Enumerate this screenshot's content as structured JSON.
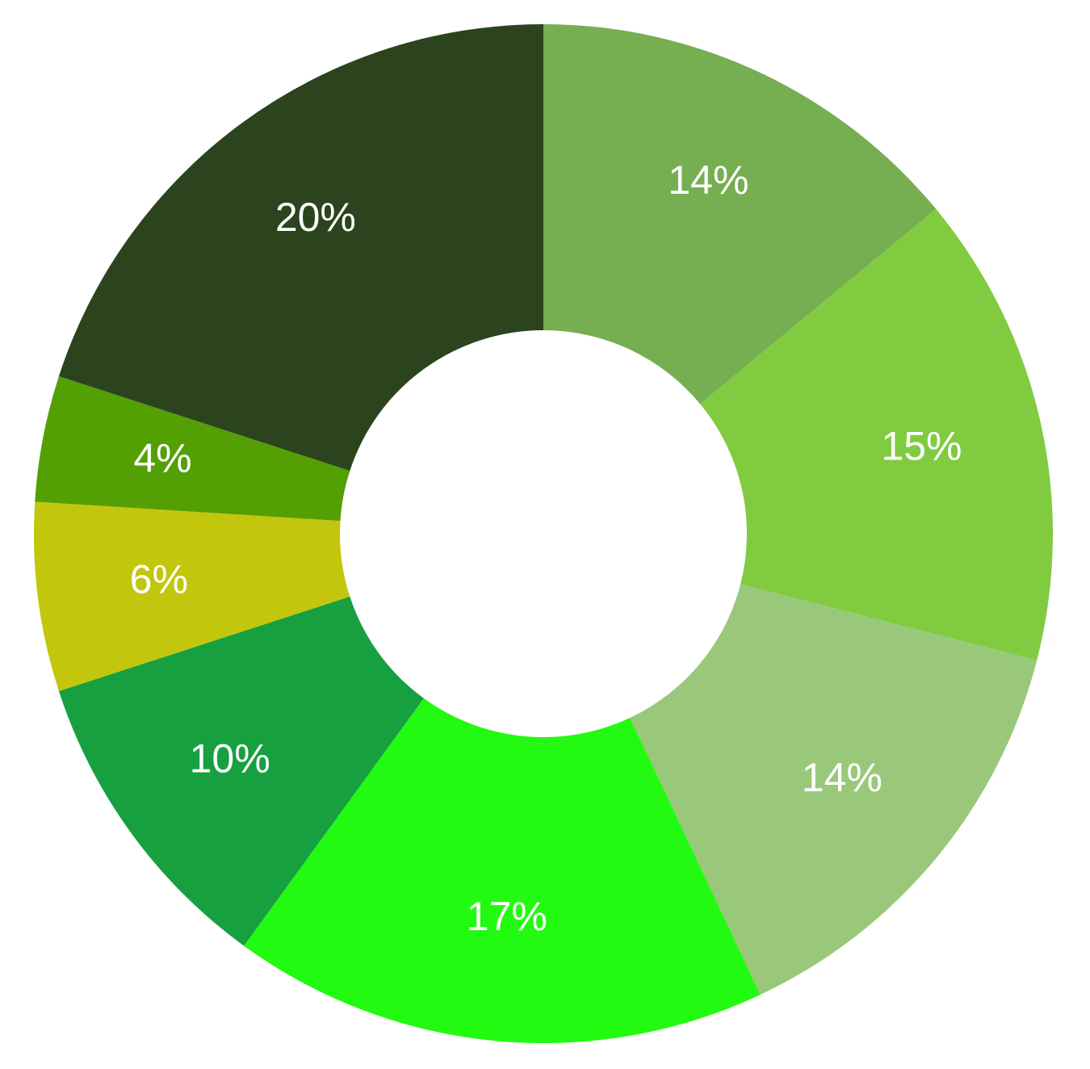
{
  "chart_data": {
    "type": "pie",
    "donut": true,
    "start": "top",
    "direction": "clockwise",
    "slices": [
      {
        "label": "14%",
        "value": 14,
        "color": "#76AE52"
      },
      {
        "label": "15%",
        "value": 15,
        "color": "#80CB40"
      },
      {
        "label": "14%",
        "value": 14,
        "color": "#9AC87B"
      },
      {
        "label": "17%",
        "value": 17,
        "color": "#23FA11"
      },
      {
        "label": "10%",
        "value": 10,
        "color": "#17A03F"
      },
      {
        "label": "6%",
        "value": 6,
        "color": "#C2C60C"
      },
      {
        "label": "4%",
        "value": 4,
        "color": "#54A004"
      },
      {
        "label": "20%",
        "value": 20,
        "color": "#2B441D"
      }
    ],
    "legend": "none"
  }
}
